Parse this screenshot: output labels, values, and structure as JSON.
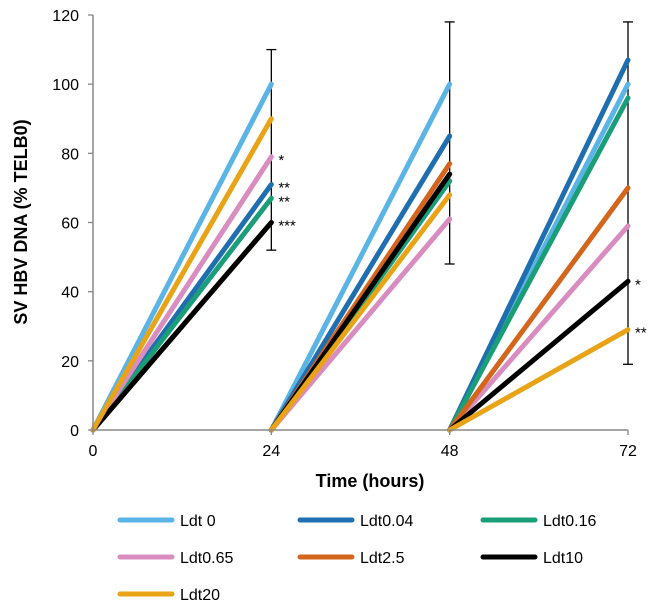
{
  "chart_data": {
    "type": "line",
    "xlabel": "Time (hours)",
    "ylabel": "SV HBV DNA (% TELB0)",
    "xlim": [
      0,
      72
    ],
    "ylim": [
      0,
      120
    ],
    "xticks": [
      0,
      24,
      48,
      72
    ],
    "yticks": [
      0,
      20,
      40,
      60,
      80,
      100,
      120
    ],
    "legend_position": "bottom",
    "segments": [
      [
        0,
        24
      ],
      [
        24,
        48
      ],
      [
        48,
        72
      ]
    ],
    "series": [
      {
        "name": "Ldt 0",
        "color": "#5ab4e5",
        "end_values": [
          100,
          100,
          100
        ]
      },
      {
        "name": "Ldt0.04",
        "color": "#1f6fb0",
        "end_values": [
          71,
          85,
          107
        ]
      },
      {
        "name": "Ldt0.16",
        "color": "#1a9e77",
        "end_values": [
          67,
          72,
          96
        ]
      },
      {
        "name": "Ldt0.65",
        "color": "#d98cbf",
        "end_values": [
          79,
          61,
          59
        ]
      },
      {
        "name": "Ldt2.5",
        "color": "#d4651c",
        "end_values": [
          60,
          77,
          70
        ]
      },
      {
        "name": "Ldt10",
        "color": "#000000",
        "end_values": [
          60,
          74,
          43
        ]
      },
      {
        "name": "Ldt20",
        "color": "#e8a317",
        "end_values": [
          90,
          68,
          29
        ]
      }
    ],
    "error_bars": [
      {
        "x": 24,
        "low": 52,
        "high": 110
      },
      {
        "x": 48,
        "low": 48,
        "high": 118
      },
      {
        "x": 72,
        "low": 19,
        "high": 118
      }
    ],
    "annotations": [
      {
        "x": 24,
        "y": 79,
        "text": "*"
      },
      {
        "x": 24,
        "y": 71,
        "text": "**"
      },
      {
        "x": 24,
        "y": 67,
        "text": "**"
      },
      {
        "x": 24,
        "y": 60,
        "text": "***"
      },
      {
        "x": 72,
        "y": 43,
        "text": "*"
      },
      {
        "x": 72,
        "y": 29,
        "text": "**"
      }
    ]
  }
}
